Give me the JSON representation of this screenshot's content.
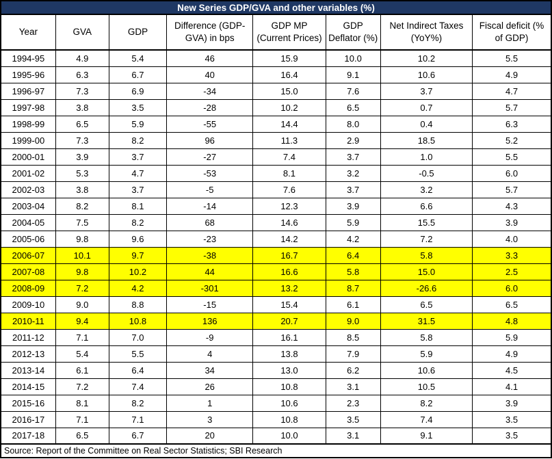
{
  "chart_data": {
    "type": "table",
    "title": "New Series GDP/GVA and other variables (%)",
    "columns": [
      "Year",
      "GVA",
      "GDP",
      "Difference (GDP-GVA) in bps",
      "GDP MP (Current Prices)",
      "GDP Deflator (%)",
      "Net Indirect Taxes  (YoY%)",
      "Fiscal deficit (% of GDP)"
    ],
    "rows": [
      {
        "year": "1994-95",
        "values": [
          "4.9",
          "5.4",
          "46",
          "15.9",
          "10.0",
          "10.2",
          "5.5"
        ],
        "highlight": false
      },
      {
        "year": "1995-96",
        "values": [
          "6.3",
          "6.7",
          "40",
          "16.4",
          "9.1",
          "10.6",
          "4.9"
        ],
        "highlight": false
      },
      {
        "year": "1996-97",
        "values": [
          "7.3",
          "6.9",
          "-34",
          "15.0",
          "7.6",
          "3.7",
          "4.7"
        ],
        "highlight": false
      },
      {
        "year": "1997-98",
        "values": [
          "3.8",
          "3.5",
          "-28",
          "10.2",
          "6.5",
          "0.7",
          "5.7"
        ],
        "highlight": false
      },
      {
        "year": "1998-99",
        "values": [
          "6.5",
          "5.9",
          "-55",
          "14.4",
          "8.0",
          "0.4",
          "6.3"
        ],
        "highlight": false
      },
      {
        "year": "1999-00",
        "values": [
          "7.3",
          "8.2",
          "96",
          "11.3",
          "2.9",
          "18.5",
          "5.2"
        ],
        "highlight": false
      },
      {
        "year": "2000-01",
        "values": [
          "3.9",
          "3.7",
          "-27",
          "7.4",
          "3.7",
          "1.0",
          "5.5"
        ],
        "highlight": false
      },
      {
        "year": "2001-02",
        "values": [
          "5.3",
          "4.7",
          "-53",
          "8.1",
          "3.2",
          "-0.5",
          "6.0"
        ],
        "highlight": false
      },
      {
        "year": "2002-03",
        "values": [
          "3.8",
          "3.7",
          "-5",
          "7.6",
          "3.7",
          "3.2",
          "5.7"
        ],
        "highlight": false
      },
      {
        "year": "2003-04",
        "values": [
          "8.2",
          "8.1",
          "-14",
          "12.3",
          "3.9",
          "6.6",
          "4.3"
        ],
        "highlight": false
      },
      {
        "year": "2004-05",
        "values": [
          "7.5",
          "8.2",
          "68",
          "14.6",
          "5.9",
          "15.5",
          "3.9"
        ],
        "highlight": false
      },
      {
        "year": "2005-06",
        "values": [
          "9.8",
          "9.6",
          "-23",
          "14.2",
          "4.2",
          "7.2",
          "4.0"
        ],
        "highlight": false
      },
      {
        "year": "2006-07",
        "values": [
          "10.1",
          "9.7",
          "-38",
          "16.7",
          "6.4",
          "5.8",
          "3.3"
        ],
        "highlight": true
      },
      {
        "year": "2007-08",
        "values": [
          "9.8",
          "10.2",
          "44",
          "16.6",
          "5.8",
          "15.0",
          "2.5"
        ],
        "highlight": true
      },
      {
        "year": "2008-09",
        "values": [
          "7.2",
          "4.2",
          "-301",
          "13.2",
          "8.7",
          "-26.6",
          "6.0"
        ],
        "highlight": true
      },
      {
        "year": "2009-10",
        "values": [
          "9.0",
          "8.8",
          "-15",
          "15.4",
          "6.1",
          "6.5",
          "6.5"
        ],
        "highlight": false
      },
      {
        "year": "2010-11",
        "values": [
          "9.4",
          "10.8",
          "136",
          "20.7",
          "9.0",
          "31.5",
          "4.8"
        ],
        "highlight": true
      },
      {
        "year": "2011-12",
        "values": [
          "7.1",
          "7.0",
          "-9",
          "16.1",
          "8.5",
          "5.8",
          "5.9"
        ],
        "highlight": false
      },
      {
        "year": "2012-13",
        "values": [
          "5.4",
          "5.5",
          "4",
          "13.8",
          "7.9",
          "5.9",
          "4.9"
        ],
        "highlight": false
      },
      {
        "year": "2013-14",
        "values": [
          "6.1",
          "6.4",
          "34",
          "13.0",
          "6.2",
          "10.6",
          "4.5"
        ],
        "highlight": false
      },
      {
        "year": "2014-15",
        "values": [
          "7.2",
          "7.4",
          "26",
          "10.8",
          "3.1",
          "10.5",
          "4.1"
        ],
        "highlight": false
      },
      {
        "year": "2015-16",
        "values": [
          "8.1",
          "8.2",
          "1",
          "10.6",
          "2.3",
          "8.2",
          "3.9"
        ],
        "highlight": false
      },
      {
        "year": "2016-17",
        "values": [
          "7.1",
          "7.1",
          "3",
          "10.8",
          "3.5",
          "7.4",
          "3.5"
        ],
        "highlight": false
      },
      {
        "year": "2017-18",
        "values": [
          "6.5",
          "6.7",
          "20",
          "10.0",
          "3.1",
          "9.1",
          "3.5"
        ],
        "highlight": false
      }
    ],
    "highlighted_years": [
      "2006-07",
      "2007-08",
      "2008-09",
      "2010-11"
    ],
    "source_note": "Source: Report of the Committee on Real Sector Statistics; SBI Research",
    "layout": {
      "grid": true,
      "legend": "none"
    }
  },
  "colors": {
    "title_bg": "#1F3864",
    "title_text": "#FFFFFF",
    "highlight": "#FFFF00",
    "border": "#000000"
  }
}
